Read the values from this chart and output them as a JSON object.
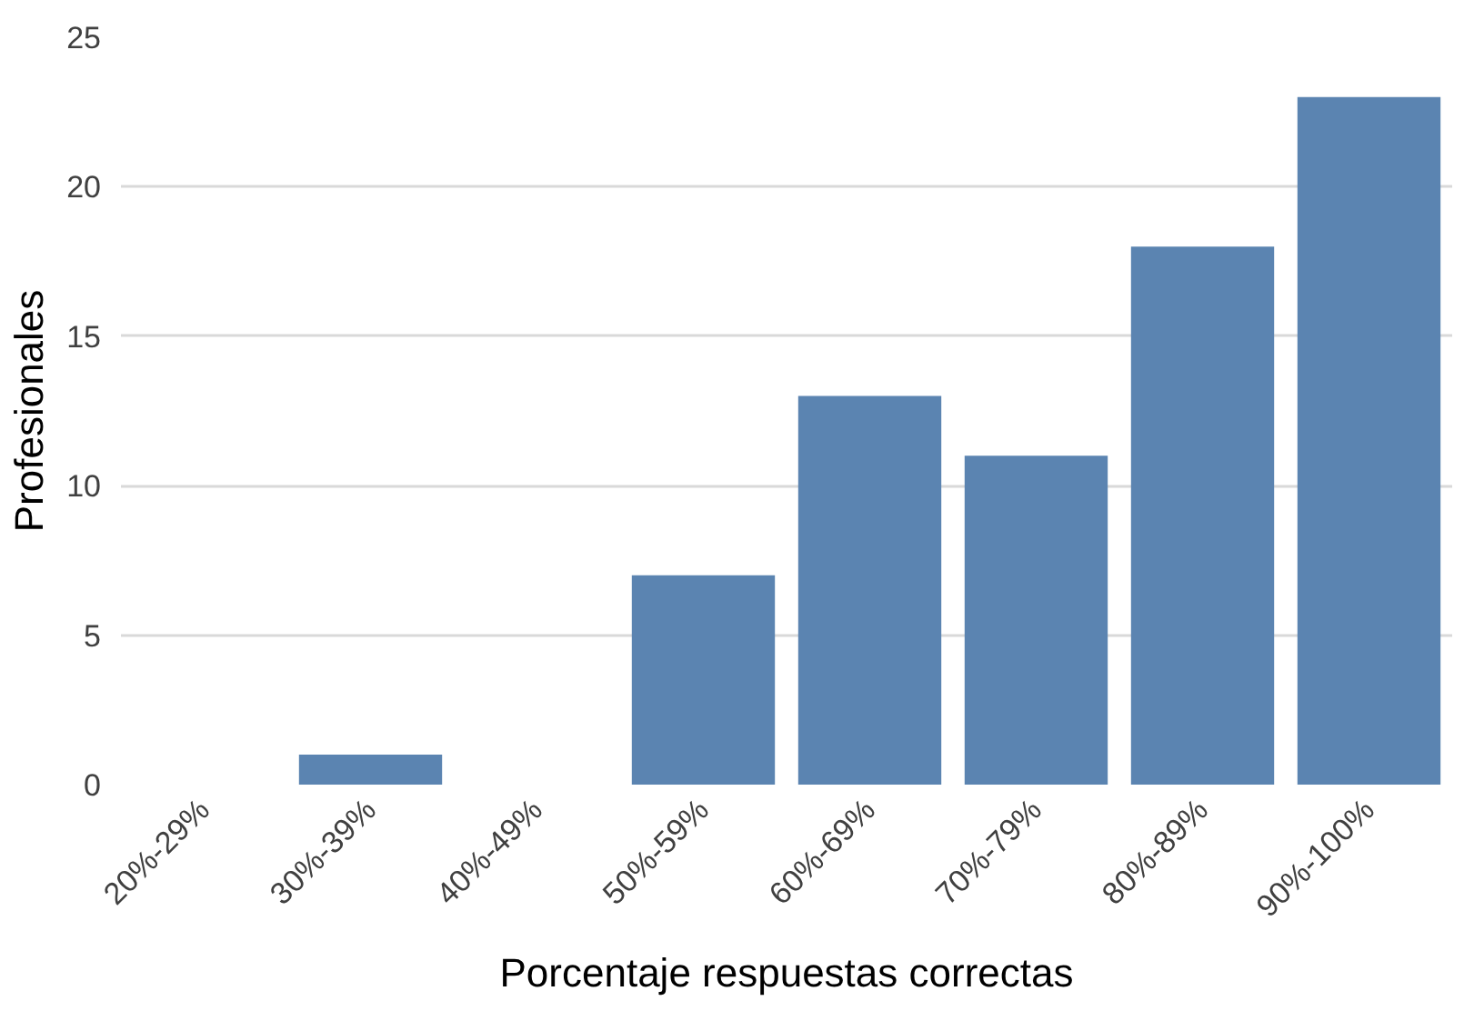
{
  "chart_data": {
    "type": "bar",
    "xlabel": "Porcentaje respuestas correctas",
    "ylabel": "Profesionales",
    "categories": [
      "20%-29%",
      "30%-39%",
      "40%-49%",
      "50%-59%",
      "60%-69%",
      "70%-79%",
      "80%-89%",
      "90%-100%"
    ],
    "values": [
      0,
      1,
      0,
      7,
      13,
      11,
      18,
      23
    ],
    "color": "#5b84b1",
    "ylim": [
      0,
      25
    ],
    "yticks": [
      0,
      5,
      10,
      15,
      20,
      25
    ],
    "grid": "y"
  }
}
